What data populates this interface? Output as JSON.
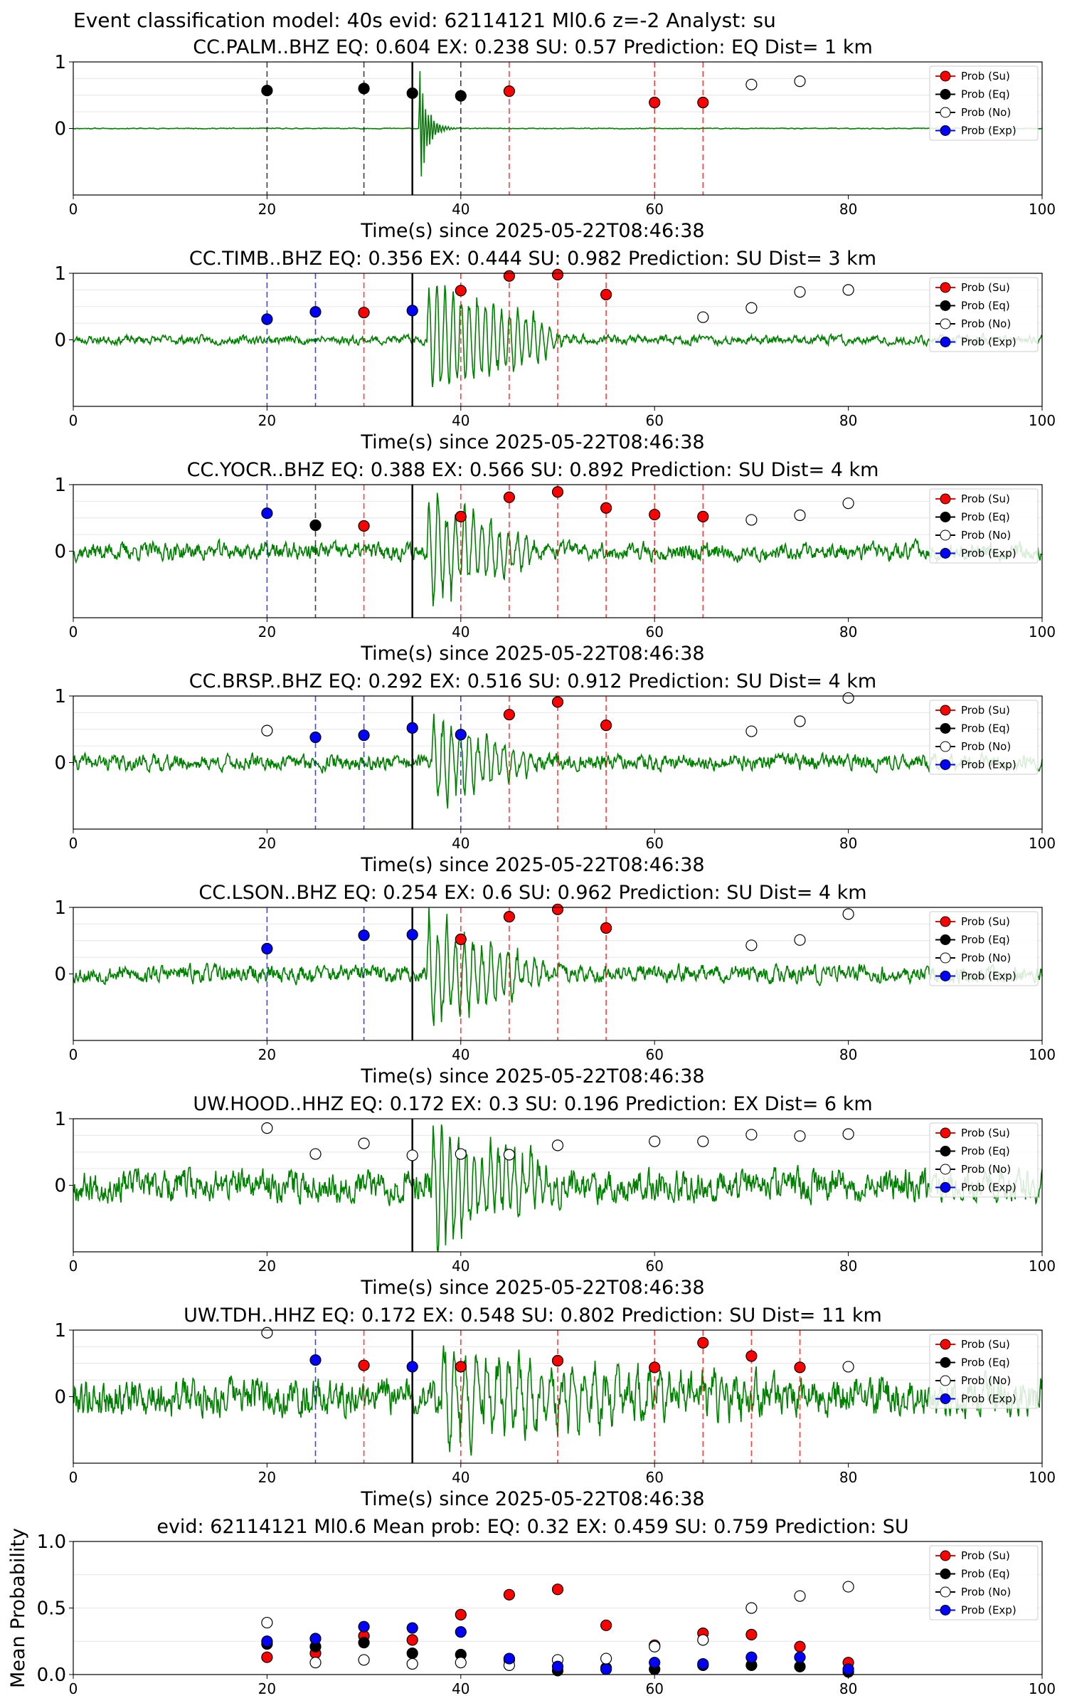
{
  "figure_title": "Event classification model: 40s evid: 62114121 Ml0.6 z=-2 Analyst: su",
  "xlabel": "Time(s) since 2025-05-22T08:46:38",
  "legend_labels": [
    "Prob (Su)",
    "Prob (Eq)",
    "Prob (No)",
    "Prob (Exp)"
  ],
  "colors": {
    "su": "#ff0000",
    "eq": "#000000",
    "no": "#ffffff",
    "exp": "#0000ff",
    "trace": "#008000",
    "su_line": "#ff0000",
    "eq_line": "#000000",
    "exp_line": "#0000ff"
  },
  "chart_data": [
    {
      "type": "line",
      "title": "CC.PALM..BHZ   EQ: 0.604  EX: 0.238  SU: 0.57   Prediction: EQ    Dist= 1 km",
      "xlabel": "Time(s) since 2025-05-22T08:46:38",
      "xlim": [
        0,
        100
      ],
      "ylim": [
        -1,
        1
      ],
      "xticks": [
        0,
        20,
        40,
        60,
        80,
        100
      ],
      "yticks": [
        0,
        1
      ],
      "pick_time": 35,
      "waveform": {
        "seed": 11,
        "noise": 0.005,
        "burst_start": 35.7,
        "burst_amp": 1.0,
        "burst_decay": 1.2,
        "burst_freq": 3.4,
        "tail_end": 40
      },
      "class_vlines": {
        "eq": [
          20,
          30,
          40
        ],
        "su": [
          45,
          60,
          65
        ]
      },
      "points": {
        "eq": [
          [
            20,
            0.57
          ],
          [
            30,
            0.6
          ],
          [
            35,
            0.53
          ],
          [
            40,
            0.49
          ]
        ],
        "su": [
          [
            45,
            0.56
          ],
          [
            60,
            0.39
          ],
          [
            65,
            0.39
          ]
        ],
        "no": [
          [
            70,
            0.66
          ],
          [
            75,
            0.71
          ]
        ]
      },
      "legend": true
    },
    {
      "type": "line",
      "title": "CC.TIMB..BHZ   EQ: 0.356  EX: 0.444  SU: 0.982   Prediction: SU    Dist= 3 km",
      "xlabel": "Time(s) since 2025-05-22T08:46:38",
      "xlim": [
        0,
        100
      ],
      "ylim": [
        -1,
        1
      ],
      "xticks": [
        0,
        20,
        40,
        60,
        80,
        100
      ],
      "yticks": [
        0,
        1
      ],
      "pick_time": 35,
      "waveform": {
        "seed": 23,
        "noise": 0.05,
        "burst_start": 36.5,
        "burst_amp": 1.0,
        "burst_decay": 0.08,
        "burst_freq": 1.2,
        "tail_end": 48
      },
      "class_vlines": {
        "exp": [
          20,
          25
        ],
        "su": [
          30,
          40,
          45,
          50,
          55
        ]
      },
      "points": {
        "exp": [
          [
            20,
            0.31
          ],
          [
            25,
            0.42
          ],
          [
            35,
            0.44
          ]
        ],
        "su": [
          [
            30,
            0.41
          ],
          [
            40,
            0.74
          ],
          [
            45,
            0.96
          ],
          [
            50,
            0.98
          ],
          [
            55,
            0.68
          ]
        ],
        "no": [
          [
            65,
            0.34
          ],
          [
            70,
            0.48
          ],
          [
            75,
            0.72
          ],
          [
            80,
            0.75
          ]
        ]
      },
      "legend": true
    },
    {
      "type": "line",
      "title": "CC.YOCR..BHZ   EQ: 0.388  EX: 0.566  SU: 0.892   Prediction: SU    Dist= 4 km",
      "xlabel": "Time(s) since 2025-05-22T08:46:38",
      "xlim": [
        0,
        100
      ],
      "ylim": [
        -1,
        1
      ],
      "xticks": [
        0,
        20,
        40,
        60,
        80,
        100
      ],
      "yticks": [
        0,
        1
      ],
      "pick_time": 35,
      "waveform": {
        "seed": 37,
        "noise": 0.1,
        "burst_start": 36.5,
        "burst_amp": 1.0,
        "burst_decay": 0.12,
        "burst_freq": 1.1,
        "tail_end": 46
      },
      "class_vlines": {
        "exp": [
          20
        ],
        "eq": [
          25
        ],
        "su": [
          30,
          40,
          45,
          50,
          55,
          60,
          65
        ]
      },
      "points": {
        "exp": [
          [
            20,
            0.57
          ]
        ],
        "eq": [
          [
            25,
            0.39
          ]
        ],
        "su": [
          [
            30,
            0.38
          ],
          [
            40,
            0.52
          ],
          [
            45,
            0.81
          ],
          [
            50,
            0.89
          ],
          [
            55,
            0.65
          ],
          [
            60,
            0.55
          ],
          [
            65,
            0.52
          ]
        ],
        "no": [
          [
            70,
            0.47
          ],
          [
            75,
            0.54
          ],
          [
            80,
            0.72
          ]
        ]
      },
      "legend": true
    },
    {
      "type": "line",
      "title": "CC.BRSP..BHZ   EQ: 0.292  EX: 0.516  SU: 0.912   Prediction: SU    Dist= 4 km",
      "xlabel": "Time(s) since 2025-05-22T08:46:38",
      "xlim": [
        0,
        100
      ],
      "ylim": [
        -1,
        1
      ],
      "xticks": [
        0,
        20,
        40,
        60,
        80,
        100
      ],
      "yticks": [
        0,
        1
      ],
      "pick_time": 35,
      "waveform": {
        "seed": 41,
        "noise": 0.09,
        "burst_start": 37,
        "burst_amp": 0.8,
        "burst_decay": 0.12,
        "burst_freq": 1.1,
        "tail_end": 46
      },
      "class_vlines": {
        "exp": [
          25,
          30,
          40
        ],
        "su": [
          45,
          50,
          55
        ]
      },
      "points": {
        "exp": [
          [
            25,
            0.38
          ],
          [
            30,
            0.41
          ],
          [
            35,
            0.52
          ],
          [
            40,
            0.42
          ]
        ],
        "su": [
          [
            45,
            0.72
          ],
          [
            50,
            0.91
          ],
          [
            55,
            0.56
          ]
        ],
        "no": [
          [
            20,
            0.48
          ],
          [
            70,
            0.47
          ],
          [
            75,
            0.62
          ],
          [
            80,
            0.97
          ]
        ]
      },
      "legend": true
    },
    {
      "type": "line",
      "title": "CC.LSON..BHZ   EQ: 0.254  EX: 0.6  SU: 0.962   Prediction: SU    Dist= 4 km",
      "xlabel": "Time(s) since 2025-05-22T08:46:38",
      "xlim": [
        0,
        100
      ],
      "ylim": [
        -1,
        1
      ],
      "xticks": [
        0,
        20,
        40,
        60,
        80,
        100
      ],
      "yticks": [
        0,
        1
      ],
      "pick_time": 35,
      "waveform": {
        "seed": 53,
        "noise": 0.1,
        "burst_start": 36.5,
        "burst_amp": 1.0,
        "burst_decay": 0.1,
        "burst_freq": 1.1,
        "tail_end": 46
      },
      "class_vlines": {
        "exp": [
          20,
          30
        ],
        "su": [
          40,
          45,
          50,
          55
        ]
      },
      "points": {
        "exp": [
          [
            20,
            0.38
          ],
          [
            30,
            0.58
          ],
          [
            35,
            0.59
          ]
        ],
        "su": [
          [
            40,
            0.52
          ],
          [
            45,
            0.86
          ],
          [
            50,
            0.97
          ],
          [
            55,
            0.69
          ]
        ],
        "no": [
          [
            70,
            0.43
          ],
          [
            75,
            0.51
          ],
          [
            80,
            0.9
          ]
        ]
      },
      "legend": true
    },
    {
      "type": "line",
      "title": "UW.HOOD..HHZ   EQ: 0.172  EX: 0.3  SU: 0.196   Prediction: EX    Dist= 6 km",
      "xlabel": "Time(s) since 2025-05-22T08:46:38",
      "xlim": [
        0,
        100
      ],
      "ylim": [
        -1,
        1
      ],
      "xticks": [
        0,
        20,
        40,
        60,
        80,
        100
      ],
      "yticks": [
        0,
        1
      ],
      "pick_time": 35,
      "waveform": {
        "seed": 67,
        "noise": 0.18,
        "burst_start": 37,
        "burst_amp": 0.95,
        "burst_decay": 0.08,
        "burst_freq": 1.2,
        "tail_end": 48
      },
      "class_vlines": {},
      "points": {
        "no": [
          [
            20,
            0.86
          ],
          [
            25,
            0.47
          ],
          [
            30,
            0.63
          ],
          [
            35,
            0.45
          ],
          [
            40,
            0.47
          ],
          [
            45,
            0.46
          ],
          [
            50,
            0.6
          ],
          [
            60,
            0.66
          ],
          [
            65,
            0.66
          ],
          [
            70,
            0.76
          ],
          [
            75,
            0.74
          ],
          [
            80,
            0.77
          ]
        ]
      },
      "legend": true
    },
    {
      "type": "line",
      "title": "UW.TDH..HHZ   EQ: 0.172  EX: 0.548  SU: 0.802   Prediction: SU    Dist= 11 km",
      "xlabel": "Time(s) since 2025-05-22T08:46:38",
      "xlim": [
        0,
        100
      ],
      "ylim": [
        -1,
        1
      ],
      "xticks": [
        0,
        20,
        40,
        60,
        80,
        100
      ],
      "yticks": [
        0,
        1
      ],
      "pick_time": 35,
      "waveform": {
        "seed": 79,
        "noise": 0.22,
        "burst_start": 38,
        "burst_amp": 0.85,
        "burst_decay": 0.05,
        "burst_freq": 0.9,
        "tail_end": 70
      },
      "class_vlines": {
        "exp": [
          25
        ],
        "su": [
          30,
          40,
          50,
          60,
          65,
          70,
          75
        ]
      },
      "points": {
        "exp": [
          [
            25,
            0.55
          ],
          [
            35,
            0.45
          ]
        ],
        "su": [
          [
            30,
            0.47
          ],
          [
            40,
            0.45
          ],
          [
            50,
            0.54
          ],
          [
            60,
            0.44
          ],
          [
            65,
            0.81
          ],
          [
            70,
            0.61
          ],
          [
            75,
            0.44
          ]
        ],
        "no": [
          [
            20,
            0.96
          ],
          [
            80,
            0.45
          ]
        ]
      },
      "legend": true
    },
    {
      "type": "scatter",
      "title": "evid: 62114121  Ml0.6   Mean prob:   EQ: 0.32  EX: 0.459  SU: 0.759   Prediction: SU",
      "ylabel": "Mean Probability",
      "xlim": [
        0,
        100
      ],
      "ylim": [
        0,
        1
      ],
      "xticks": [
        0,
        20,
        40,
        60,
        80,
        100
      ],
      "yticks": [
        0.0,
        0.5,
        1.0
      ],
      "ytick_labels": [
        "0.0",
        "0.5",
        "1.0"
      ],
      "series": [
        {
          "name": "Prob (Su)",
          "class": "su",
          "x": [
            20,
            25,
            30,
            35,
            40,
            45,
            50,
            55,
            60,
            65,
            70,
            75,
            80
          ],
          "y": [
            0.13,
            0.16,
            0.29,
            0.26,
            0.45,
            0.6,
            0.64,
            0.37,
            0.22,
            0.31,
            0.3,
            0.21,
            0.09
          ]
        },
        {
          "name": "Prob (Eq)",
          "class": "eq",
          "x": [
            20,
            25,
            30,
            35,
            40,
            45,
            50,
            55,
            60,
            65,
            70,
            75,
            80
          ],
          "y": [
            0.23,
            0.21,
            0.24,
            0.16,
            0.15,
            0.11,
            0.03,
            0.05,
            0.04,
            0.07,
            0.07,
            0.06,
            0.02
          ]
        },
        {
          "name": "Prob (No)",
          "class": "no",
          "x": [
            20,
            25,
            30,
            35,
            40,
            45,
            50,
            55,
            60,
            65,
            70,
            75,
            80
          ],
          "y": [
            0.39,
            0.09,
            0.11,
            0.08,
            0.09,
            0.07,
            0.11,
            0.12,
            0.21,
            0.26,
            0.5,
            0.59,
            0.66
          ]
        },
        {
          "name": "Prob (Exp)",
          "class": "exp",
          "x": [
            20,
            25,
            30,
            35,
            40,
            45,
            50,
            55,
            60,
            65,
            70,
            75,
            80
          ],
          "y": [
            0.25,
            0.27,
            0.36,
            0.35,
            0.32,
            0.12,
            0.06,
            0.04,
            0.09,
            0.08,
            0.13,
            0.13,
            0.04
          ]
        }
      ],
      "legend": true
    }
  ]
}
